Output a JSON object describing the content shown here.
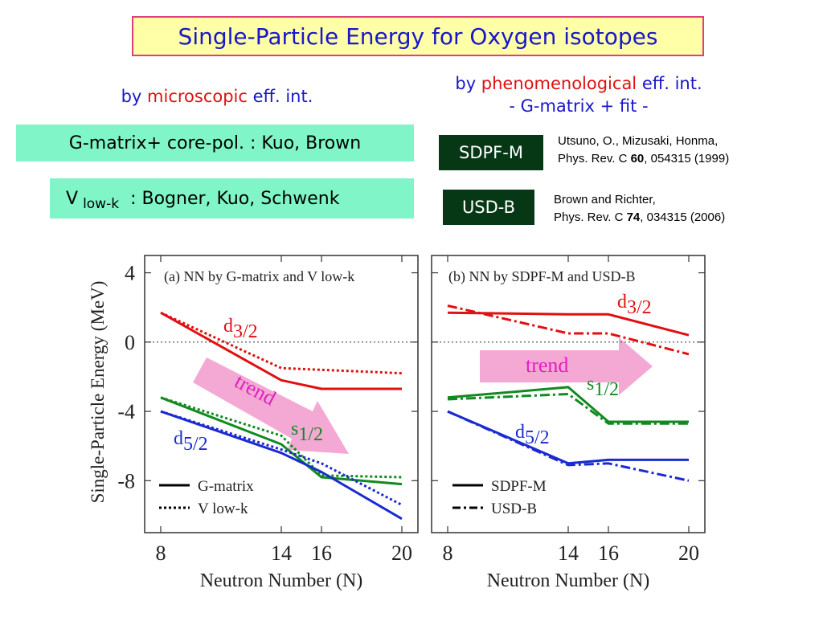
{
  "title": "Single-Particle Energy for Oxygen isotopes",
  "left_header": {
    "prefix": "by ",
    "highlight": "microscopic",
    "suffix": " eff. int."
  },
  "right_header": {
    "prefix": "by ",
    "highlight": "phenomenological",
    "suffix": " eff. int.",
    "line2": "- G-matrix + fit -"
  },
  "gmatrix_box": "G-matrix+ core-pol. : Kuo,  Brown",
  "vlowk_box": {
    "v": "V",
    "sub": "low-k",
    "rest": " : Bogner, Kuo, Schwenk"
  },
  "sdpfm_box": "SDPF-M",
  "usdb_box": "USD-B",
  "ref1": {
    "line1": "Utsuno, O., Mizusaki, Honma,",
    "pre": "Phys. Rev. C ",
    "vol": "60",
    "post": ", 054315 (1999)"
  },
  "ref2": {
    "line1": "Brown and Richter,",
    "pre": "Phys. Rev. C ",
    "vol": "74",
    "post": ", 034315 (2006)"
  },
  "colors": {
    "red": "#e01010",
    "green": "#128a20",
    "blue": "#1a2bd0",
    "pink": "#f4a8d4",
    "trend_text": "#e020c0"
  },
  "chart_data": [
    {
      "type": "line",
      "title": "(a)  NN by G-matrix and V low-k",
      "xlabel": "Neutron Number (N)",
      "ylabel": "Single-Particle Energy (MeV)",
      "xlim": [
        7.2,
        20.8
      ],
      "ylim": [
        -11.0,
        5.0
      ],
      "xticks": [
        8,
        14,
        16,
        20
      ],
      "yticks": [
        4,
        0,
        -4,
        -8
      ],
      "zero_line": "dotted",
      "legend": {
        "placement": "bottom-left",
        "entries": [
          {
            "label": "G-matrix",
            "style": "solid"
          },
          {
            "label": "V low-k",
            "style": "dotted"
          }
        ]
      },
      "orbit_labels": [
        {
          "letter": "d",
          "sub": "3/2",
          "color": "red"
        },
        {
          "letter": "s",
          "sub": "1/2",
          "color": "green"
        },
        {
          "letter": "d",
          "sub": "5/2",
          "color": "blue"
        }
      ],
      "trend_label": "trend",
      "series": [
        {
          "orbit": "d3/2",
          "style": "solid",
          "color": "red",
          "x": [
            8,
            14,
            16,
            20
          ],
          "y": [
            1.7,
            -2.2,
            -2.7,
            -2.7
          ]
        },
        {
          "orbit": "d3/2",
          "style": "dotted",
          "color": "red",
          "x": [
            8,
            14,
            16,
            20
          ],
          "y": [
            1.7,
            -1.5,
            -1.6,
            -1.8
          ]
        },
        {
          "orbit": "s1/2",
          "style": "solid",
          "color": "green",
          "x": [
            8,
            14,
            16,
            20
          ],
          "y": [
            -3.2,
            -5.9,
            -7.8,
            -8.2
          ]
        },
        {
          "orbit": "s1/2",
          "style": "dotted",
          "color": "green",
          "x": [
            8,
            14,
            16,
            20
          ],
          "y": [
            -3.2,
            -5.4,
            -7.7,
            -7.8
          ]
        },
        {
          "orbit": "d5/2",
          "style": "solid",
          "color": "blue",
          "x": [
            8,
            14,
            16,
            20
          ],
          "y": [
            -4.0,
            -6.4,
            -7.5,
            -10.2
          ]
        },
        {
          "orbit": "d5/2",
          "style": "dotted",
          "color": "blue",
          "x": [
            8,
            14,
            16,
            20
          ],
          "y": [
            -4.0,
            -6.2,
            -7.0,
            -9.4
          ]
        }
      ]
    },
    {
      "type": "line",
      "title": "(b) NN by SDPF-M and USD-B",
      "xlabel": "Neutron Number (N)",
      "xlim": [
        7.2,
        20.8
      ],
      "ylim": [
        -11.0,
        5.0
      ],
      "xticks": [
        8,
        14,
        16,
        20
      ],
      "zero_line": "dotted",
      "legend": {
        "placement": "bottom-left",
        "entries": [
          {
            "label": "SDPF-M",
            "style": "solid"
          },
          {
            "label": "USD-B",
            "style": "dashdot"
          }
        ]
      },
      "orbit_labels": [
        {
          "letter": "d",
          "sub": "3/2",
          "color": "red"
        },
        {
          "letter": "s",
          "sub": "1/2",
          "color": "green"
        },
        {
          "letter": "d",
          "sub": "5/2",
          "color": "blue"
        }
      ],
      "trend_label": "trend",
      "series": [
        {
          "orbit": "d3/2",
          "style": "solid",
          "color": "red",
          "x": [
            8,
            14,
            16,
            20
          ],
          "y": [
            1.7,
            1.6,
            1.6,
            0.4
          ]
        },
        {
          "orbit": "d3/2",
          "style": "dashdot",
          "color": "red",
          "x": [
            8,
            14,
            16,
            20
          ],
          "y": [
            2.1,
            0.5,
            0.5,
            -0.7
          ]
        },
        {
          "orbit": "s1/2",
          "style": "solid",
          "color": "green",
          "x": [
            8,
            14,
            16,
            20
          ],
          "y": [
            -3.2,
            -2.6,
            -4.6,
            -4.6
          ]
        },
        {
          "orbit": "s1/2",
          "style": "dashdot",
          "color": "green",
          "x": [
            8,
            14,
            16,
            20
          ],
          "y": [
            -3.3,
            -3.0,
            -4.7,
            -4.7
          ]
        },
        {
          "orbit": "d5/2",
          "style": "solid",
          "color": "blue",
          "x": [
            8,
            14,
            16,
            20
          ],
          "y": [
            -4.0,
            -7.0,
            -6.8,
            -6.8
          ]
        },
        {
          "orbit": "d5/2",
          "style": "dashdot",
          "color": "blue",
          "x": [
            8,
            14,
            16,
            20
          ],
          "y": [
            -4.0,
            -7.1,
            -7.0,
            -8.0
          ]
        }
      ]
    }
  ]
}
